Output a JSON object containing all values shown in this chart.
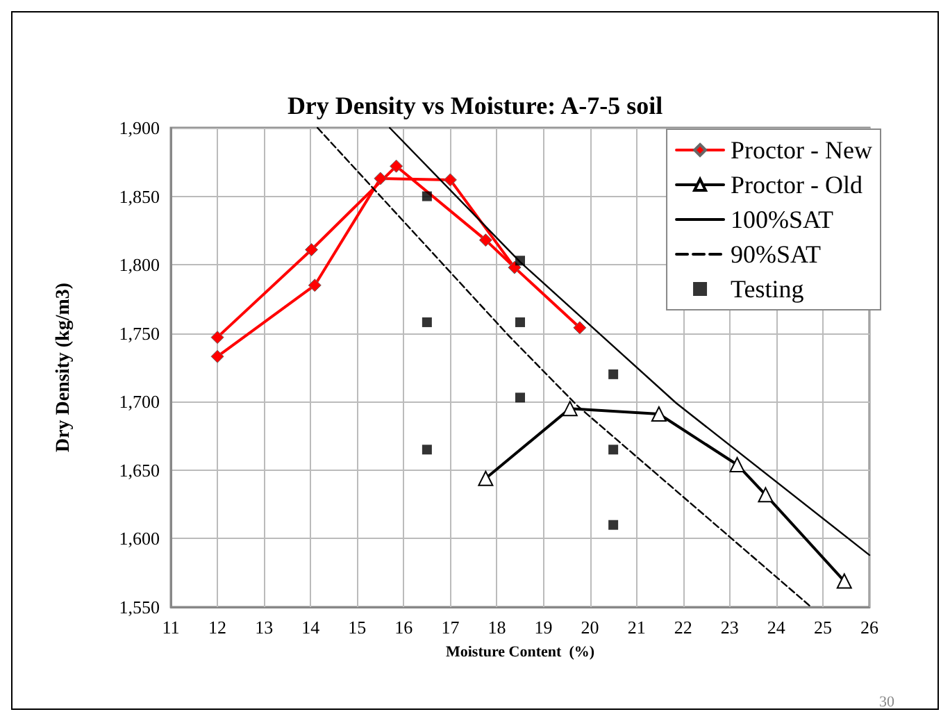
{
  "chart_data": {
    "type": "line",
    "title": "Dry Density vs Moisture: A-7-5 soil",
    "xlabel": "Moisture Content  (%)",
    "ylabel": "Dry Density (kg/m3)",
    "xlim": [
      11,
      26
    ],
    "xticks": [
      11,
      12,
      13,
      14,
      15,
      16,
      17,
      18,
      19,
      20,
      21,
      22,
      23,
      24,
      25,
      26
    ],
    "ylim": [
      1550,
      1900
    ],
    "yticks": [
      {
        "value": 1550,
        "label": "1,550"
      },
      {
        "value": 1600,
        "label": "1,600"
      },
      {
        "value": 1650,
        "label": "1,650"
      },
      {
        "value": 1700,
        "label": "1,700"
      },
      {
        "value": 1750,
        "label": "1,750"
      },
      {
        "value": 1800,
        "label": "1,800"
      },
      {
        "value": 1850,
        "label": "1,850"
      },
      {
        "value": 1900,
        "label": "1,900"
      }
    ],
    "grid": true,
    "legend": "top right",
    "annotations": [
      "30"
    ],
    "series": [
      {
        "name": "Proctor - New",
        "type": "line",
        "color": "#ff0000",
        "marker": "diamond",
        "line_style": "solid",
        "x": [
          12,
          14.02,
          15.84,
          17.76,
          18.38,
          19.78
        ],
        "values": [
          1747,
          1811,
          1872,
          1818,
          1798,
          1754
        ]
      },
      {
        "type": "line",
        "color": "#ff0000",
        "marker": "diamond",
        "line_style": "solid",
        "x": [
          12,
          14.09,
          15.5,
          17,
          18.38
        ],
        "values": [
          1733,
          1785,
          1863,
          1862,
          1798
        ]
      },
      {
        "name": "Proctor - Old",
        "type": "line",
        "color": "#000000",
        "marker": "triangle",
        "line_style": "solid",
        "x": [
          17.76,
          19.57,
          21.48,
          23.16,
          23.77,
          25.46
        ],
        "values": [
          1644,
          1695,
          1691,
          1654,
          1632,
          1569
        ]
      },
      {
        "name": "100%SAT",
        "type": "line",
        "color": "#000000",
        "marker": "none",
        "line_style": "solid",
        "x": [
          15.7,
          18.5,
          21.85,
          26
        ],
        "values": [
          1900,
          1802,
          1699,
          1588
        ]
      },
      {
        "name": "90%SAT",
        "type": "line",
        "color": "#000000",
        "marker": "none",
        "line_style": "dashed",
        "x": [
          14.15,
          18.26,
          19.73,
          24.75
        ],
        "values": [
          1900,
          1748,
          1697,
          1550
        ]
      },
      {
        "name": "Testing",
        "type": "scatter",
        "color": "#000000",
        "marker": "square",
        "x": [
          16.5,
          16.5,
          16.5,
          18.5,
          18.5,
          18.5,
          20.5,
          20.5,
          20.5
        ],
        "values": [
          1850,
          1758,
          1665,
          1803,
          1758,
          1703,
          1720,
          1665,
          1610
        ]
      }
    ]
  }
}
